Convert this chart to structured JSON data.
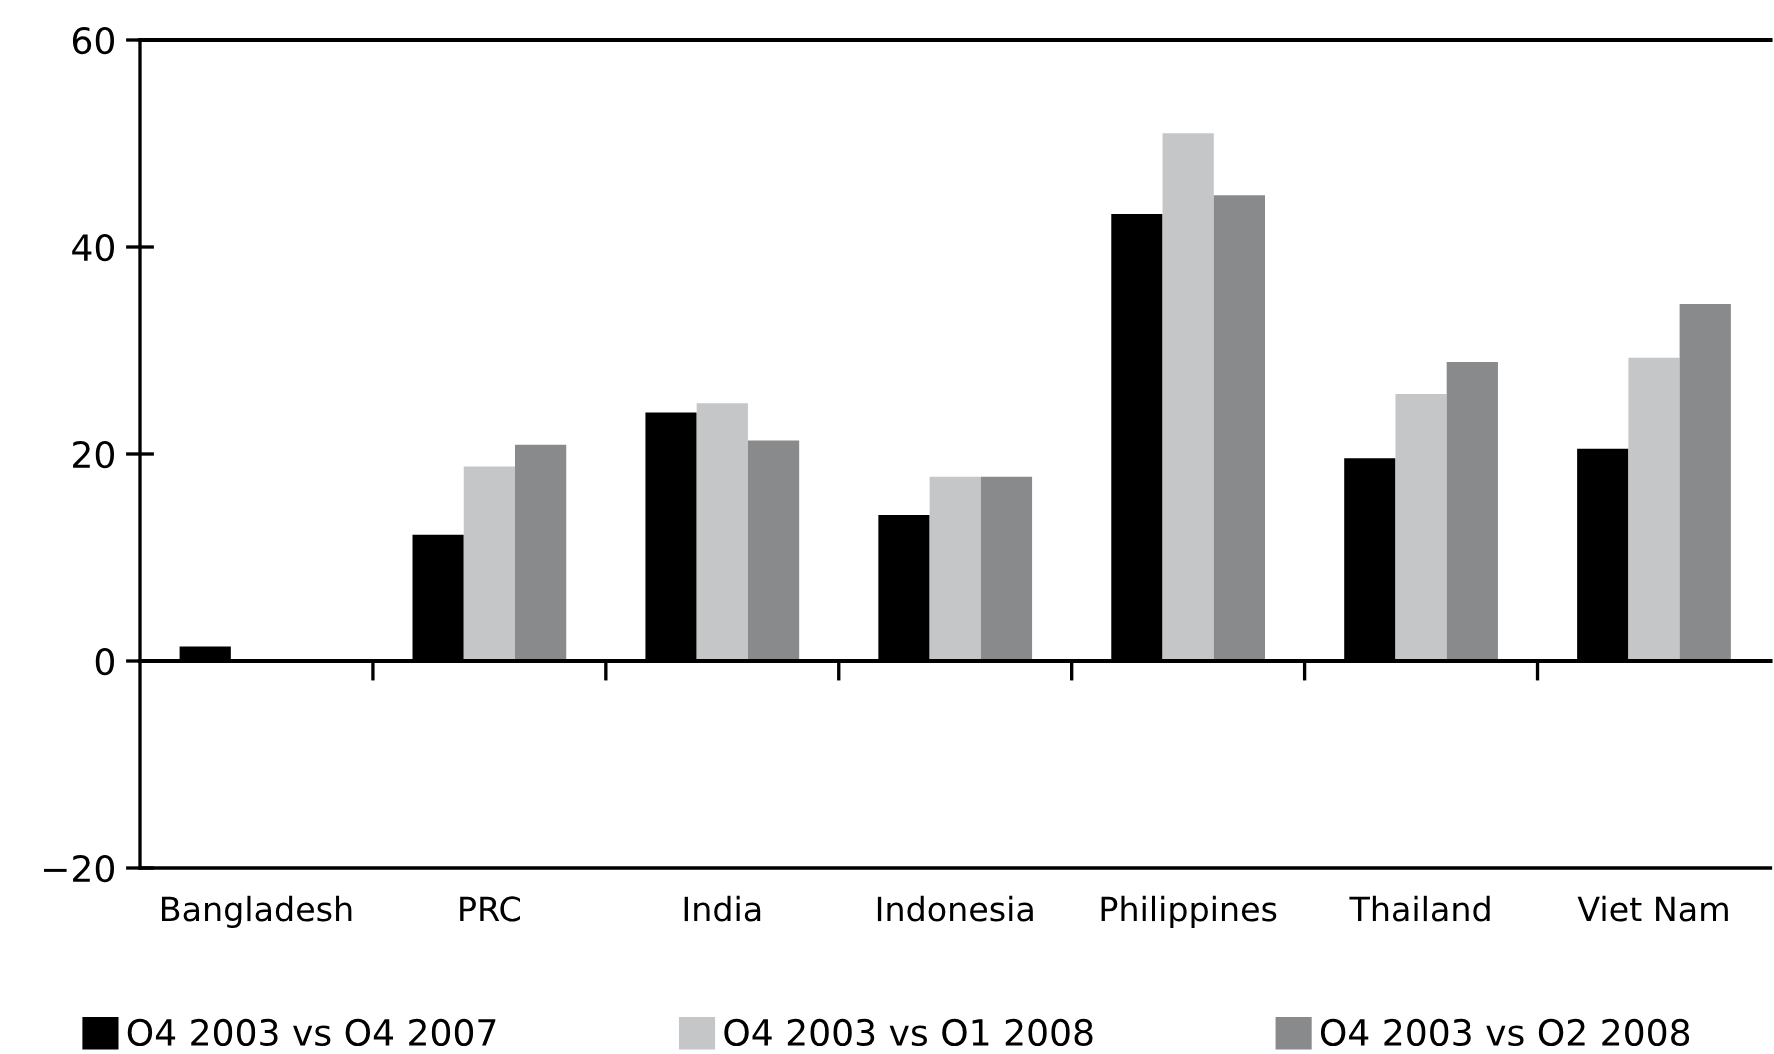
{
  "chart_data": {
    "type": "bar",
    "categories": [
      "Bangladesh",
      "PRC",
      "India",
      "Indonesia",
      "Philippines",
      "Thailand",
      "Viet Nam"
    ],
    "series": [
      {
        "name": "O4 2003 vs O4 2007",
        "color": "#000000",
        "values": [
          1.4,
          12.2,
          24.0,
          14.1,
          43.2,
          19.6,
          20.5
        ]
      },
      {
        "name": "O4 2003 vs O1 2008",
        "color": "#c5c6c8",
        "values": [
          null,
          18.8,
          24.9,
          17.8,
          51.0,
          25.8,
          29.3
        ]
      },
      {
        "name": "O4 2003 vs O2 2008",
        "color": "#898a8c",
        "values": [
          null,
          20.9,
          21.3,
          17.8,
          45.0,
          28.9,
          34.5
        ]
      }
    ],
    "ylim": [
      -20,
      60
    ],
    "yticks": [
      {
        "value": -20,
        "label": "−20"
      },
      0,
      20,
      40,
      60
    ],
    "legend": "bottom"
  }
}
